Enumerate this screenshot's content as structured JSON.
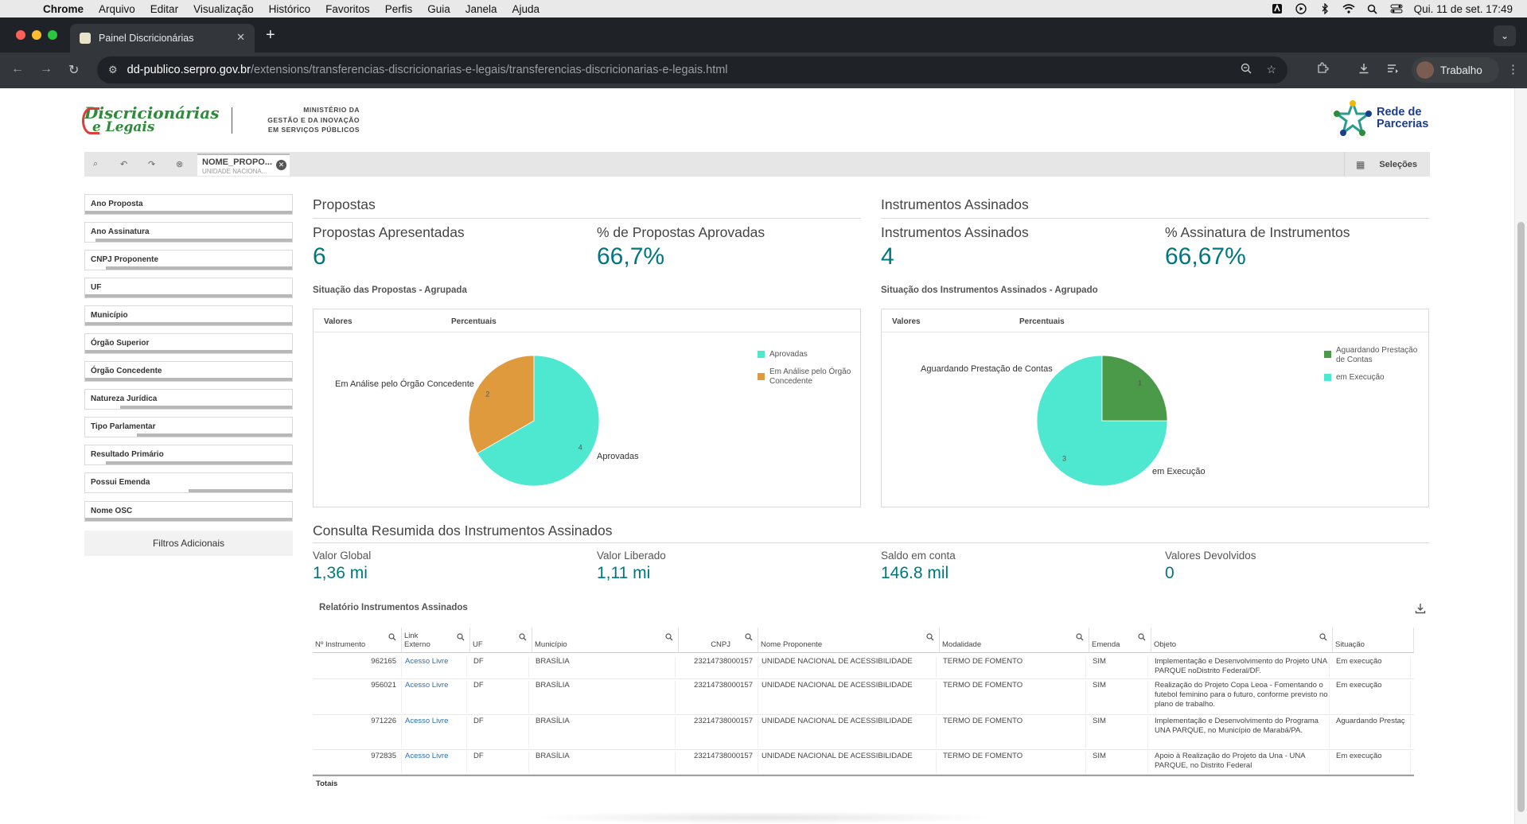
{
  "menubar": {
    "app": "Chrome",
    "items": [
      "Arquivo",
      "Editar",
      "Visualização",
      "Histórico",
      "Favoritos",
      "Perfis",
      "Guia",
      "Janela",
      "Ajuda"
    ],
    "clock": "Qui. 11 de set.  17:49"
  },
  "browser": {
    "tab_title": "Painel Discricionárias",
    "url_domain": "dd-publico.serpro.gov.br",
    "url_path": "/extensions/transferencias-discricionarias-e-legais/transferencias-discricionarias-e-legais.html",
    "profile": "Trabalho"
  },
  "header": {
    "logo_line1": "Discricionárias",
    "logo_line2": "e Legais",
    "ministry": [
      "MINISTÉRIO DA",
      "GESTÃO E DA INOVAÇÃO",
      "EM SERVIÇOS PÚBLICOS"
    ],
    "rede": [
      "Rede de",
      "Parcerias"
    ]
  },
  "selections": {
    "chip_field": "NOME_PROPO...",
    "chip_value": "UNIDADE NACIONA...",
    "label": "Seleções"
  },
  "filters": [
    {
      "label": "Ano Proposta",
      "fill": 1.0
    },
    {
      "label": "Ano Assinatura",
      "fill": 1.0
    },
    {
      "label": "CNPJ Proponente",
      "fill": 1.0
    },
    {
      "label": "UF",
      "fill": 1.0
    },
    {
      "label": "Município",
      "fill": 1.0
    },
    {
      "label": "Órgão Superior",
      "fill": 1.0
    },
    {
      "label": "Órgão Concedente",
      "fill": 1.0
    },
    {
      "label": "Natureza Jurídica",
      "fill": 1.0
    },
    {
      "label": "Tipo Parlamentar",
      "fill": 1.0
    },
    {
      "label": "Resultado Primário",
      "fill": 1.0
    },
    {
      "label": "Possui Emenda",
      "fill": 1.0
    },
    {
      "label": "Nome OSC",
      "fill": 1.0
    }
  ],
  "filters_additional": "Filtros Adicionais",
  "propostas": {
    "title": "Propostas",
    "kpi1_label": "Propostas Apresentadas",
    "kpi1_value": "6",
    "kpi2_label": "% de Propostas Aprovadas",
    "kpi2_value": "66,7%",
    "chart_title": "Situação das Propostas - Agrupada",
    "tab1": "Valores",
    "tab2": "Percentuais",
    "label_big": "Aprovadas",
    "label_small": "Em Análise pelo Órgão Concedente",
    "legend1": "Aprovadas",
    "legend2a": "Em Análise pelo Órgão",
    "legend2b": "Concedente"
  },
  "instrumentos": {
    "title": "Instrumentos Assinados",
    "kpi1_label": "Instrumentos Assinados",
    "kpi1_value": "4",
    "kpi2_label": "% Assinatura de Instrumentos",
    "kpi2_value": "66,67%",
    "chart_title": "Situação dos Instrumentos Assinados - Agrupado",
    "tab1": "Valores",
    "tab2": "Percentuais",
    "label_big": "em Execução",
    "label_small": "Aguardando Prestação de Contas",
    "legend1a": "Aguardando Prestação",
    "legend1b": "de Contas",
    "legend2": "em Execução"
  },
  "chart_data": [
    {
      "type": "pie",
      "title": "Situação das Propostas - Agrupada",
      "categories": [
        "Aprovadas",
        "Em Análise pelo Órgão Concedente"
      ],
      "values": [
        4,
        2
      ],
      "colors": [
        "#4ee7d0",
        "#e09a3e"
      ]
    },
    {
      "type": "pie",
      "title": "Situação dos Instrumentos Assinados - Agrupado",
      "categories": [
        "em Execução",
        "Aguardando Prestação de Contas"
      ],
      "values": [
        3,
        1
      ],
      "colors": [
        "#4ee7d0",
        "#4a9a4a"
      ]
    }
  ],
  "consulta": {
    "title": "Consulta Resumida dos Instrumentos Assinados",
    "kpis": [
      {
        "label": "Valor Global",
        "value": "1,36 mi"
      },
      {
        "label": "Valor Liberado",
        "value": "1,11 mi"
      },
      {
        "label": "Saldo em conta",
        "value": "146.8 mil"
      },
      {
        "label": "Valores Devolvidos",
        "value": "0"
      }
    ]
  },
  "table": {
    "title": "Relatório Instrumentos Assinados",
    "columns": [
      "Nº Instrumento",
      "Link Externo",
      "UF",
      "Município",
      "CNPJ",
      "Nome Proponente",
      "Modalidade",
      "Emenda",
      "Objeto",
      "Situação"
    ],
    "link_col_line1": "Link",
    "link_col_line2": "Externo",
    "rows": [
      [
        "962165",
        "Acesso Livre",
        "DF",
        "BRASÍLIA",
        "23214738000157",
        "UNIDADE NACIONAL DE ACESSIBILIDADE",
        "TERMO DE FOMENTO",
        "SIM",
        "Implementação e Desenvolvimento do Projeto UNA PARQUE noDistrito Federal/DF.",
        "Em execução"
      ],
      [
        "956021",
        "Acesso Livre",
        "DF",
        "BRASÍLIA",
        "23214738000157",
        "UNIDADE NACIONAL DE ACESSIBILIDADE",
        "TERMO DE FOMENTO",
        "SIM",
        "Realização do Projeto Copa Leoa - Fomentando o futebol feminino para o futuro, conforme previsto no plano de trabalho.",
        "Em execução"
      ],
      [
        "971226",
        "Acesso Livre",
        "DF",
        "BRASÍLIA",
        "23214738000157",
        "UNIDADE NACIONAL DE ACESSIBILIDADE",
        "TERMO DE FOMENTO",
        "SIM",
        "Implementação e Desenvolvimento do Programa UNA PARQUE, no Município de Marabá/PA.",
        "Aguardando Prestaç"
      ],
      [
        "972835",
        "Acesso Livre",
        "DF",
        "BRASÍLIA",
        "23214738000157",
        "UNIDADE NACIONAL DE ACESSIBILIDADE",
        "TERMO DE FOMENTO",
        "SIM",
        "Apoio à Realização do Projeto da Una - UNA PARQUE, no Distrito Federal",
        "Em execução"
      ]
    ],
    "totals": "Totais"
  }
}
